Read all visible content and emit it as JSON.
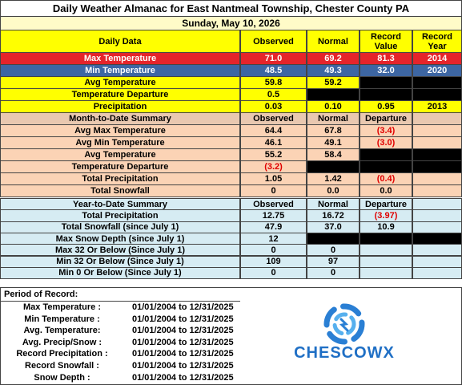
{
  "header": {
    "title": "Daily Weather Almanac for East Nantmeal Township, Chester County PA",
    "date": "Sunday, May 10, 2026"
  },
  "daily": {
    "columns": [
      "Daily Data",
      "Observed",
      "Normal",
      "Record Value",
      "Record Year"
    ],
    "rows": [
      [
        "Max Temperature",
        "71.0",
        "69.2",
        "81.3",
        "2014"
      ],
      [
        "Min Temperature",
        "48.5",
        "49.3",
        "32.0",
        "2020"
      ],
      [
        "Avg Temperature",
        "59.8",
        "59.2",
        null,
        null
      ],
      [
        "Temperature Departure",
        "0.5",
        null,
        null,
        null
      ],
      [
        "Precipitation",
        "0.03",
        "0.10",
        "0.95",
        "2013"
      ]
    ]
  },
  "month": {
    "columns": [
      "Month-to-Date Summary",
      "Observed",
      "Normal",
      "Departure"
    ],
    "rows": [
      [
        "Avg Max Temperature",
        "64.4",
        "67.8",
        "(3.4)"
      ],
      [
        "Avg Min Temperature",
        "46.1",
        "49.1",
        "(3.0)"
      ],
      [
        "Avg Temperature",
        "55.2",
        "58.4",
        null
      ],
      [
        "Temperature Departure",
        "(3.2)",
        null,
        null
      ],
      [
        "Total Precipitation",
        "1.05",
        "1.42",
        "(0.4)"
      ],
      [
        "Total Snowfall",
        "0",
        "0.0",
        "0.0"
      ]
    ]
  },
  "ytd": {
    "columns": [
      "Year-to-Date Summary",
      "Observed",
      "Normal",
      "Departure"
    ],
    "rows": [
      [
        "Total Precipitation",
        "12.75",
        "16.72",
        "(3.97)"
      ],
      [
        "Total Snowfall (since July 1)",
        "47.9",
        "37.0",
        "10.9"
      ],
      [
        "Max Snow Depth (since July 1)",
        "12",
        null,
        null
      ],
      [
        "Max 32 Or Below (Since July 1)",
        "0",
        "0"
      ],
      [
        "Min 32 Or Below (Since July 1)",
        "109",
        "97"
      ],
      [
        "Min 0 Or Below (Since July 1)",
        "0",
        "0"
      ]
    ]
  },
  "period": {
    "title": "Period of Record:",
    "rows": [
      [
        "Max Temperature :",
        "01/01/2004 to 12/31/2025"
      ],
      [
        "Min Temperature :",
        "01/01/2004 to 12/31/2025"
      ],
      [
        "Avg. Temperature:",
        "01/01/2004 to 12/31/2025"
      ],
      [
        "Avg. Precip/Snow :",
        "01/01/2004 to 12/31/2025"
      ],
      [
        "Record Precipitation :",
        "01/01/2004 to 12/31/2025"
      ],
      [
        "Record Snowfall :",
        "01/01/2004 to 12/31/2025"
      ],
      [
        "Snow Depth :",
        "01/01/2004 to 12/31/2025"
      ]
    ]
  },
  "logo": {
    "text": "CHESCOWX"
  }
}
